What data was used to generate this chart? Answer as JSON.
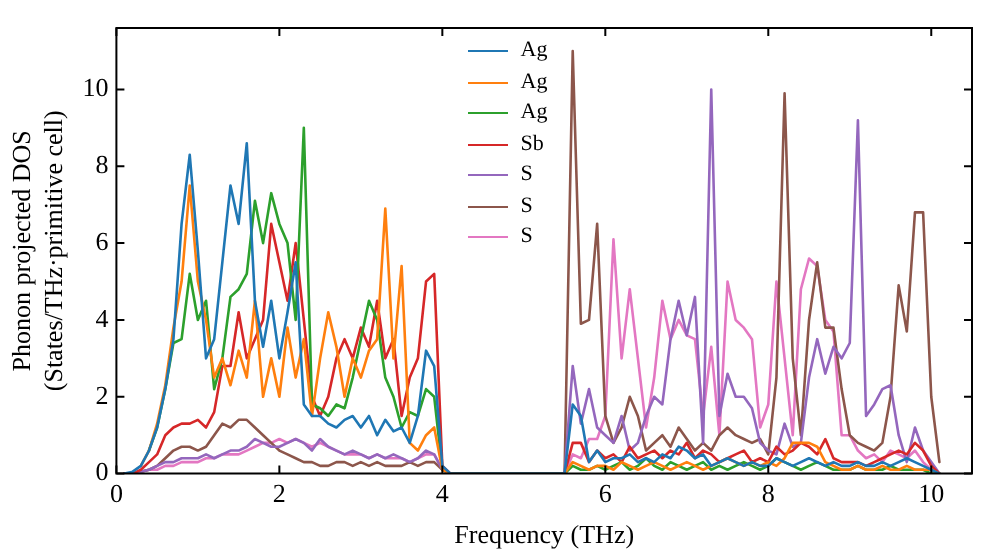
{
  "chart_data": {
    "type": "line",
    "xlabel": "Frequency (THz)",
    "ylabel": "Phonon projected DOS\n(States/THz·primitive cell)",
    "xlim": [
      0,
      10.5
    ],
    "ylim": [
      0,
      11.6
    ],
    "xticks": [
      0,
      2,
      4,
      6,
      8,
      10
    ],
    "yticks": [
      0,
      2,
      4,
      6,
      8,
      10
    ],
    "grid": false,
    "legend": "top center",
    "marker": "none",
    "line_style": "solid",
    "x": [
      0.1,
      0.2,
      0.3,
      0.4,
      0.5,
      0.6,
      0.7,
      0.8,
      0.9,
      1,
      1.1,
      1.2,
      1.3,
      1.4,
      1.5,
      1.6,
      1.7,
      1.8,
      1.9,
      2,
      2.1,
      2.2,
      2.3,
      2.4,
      2.5,
      2.6,
      2.7,
      2.8,
      2.9,
      3,
      3.1,
      3.2,
      3.3,
      3.4,
      3.5,
      3.6,
      3.7,
      3.8,
      3.9,
      4,
      4.1,
      5.5,
      5.6,
      5.7,
      5.8,
      5.9,
      6,
      6.1,
      6.2,
      6.3,
      6.4,
      6.5,
      6.6,
      6.7,
      6.8,
      6.9,
      7,
      7.1,
      7.2,
      7.3,
      7.4,
      7.5,
      7.6,
      7.7,
      7.8,
      7.9,
      8,
      8.1,
      8.2,
      8.3,
      8.4,
      8.5,
      8.6,
      8.7,
      8.8,
      8.9,
      9,
      9.1,
      9.2,
      9.3,
      9.4,
      9.5,
      9.6,
      9.7,
      9.8,
      9.9,
      10,
      10.1
    ],
    "series": [
      {
        "name": "Ag",
        "color": "#1f77b4",
        "values": [
          0,
          0.05,
          0.2,
          0.6,
          1.2,
          2.2,
          3.5,
          6.5,
          8.3,
          5.8,
          3.0,
          3.5,
          5.5,
          7.5,
          6.5,
          8.6,
          4.5,
          3.3,
          4.5,
          3.0,
          4.2,
          5.5,
          1.8,
          1.5,
          1.5,
          1.3,
          1.2,
          1.4,
          1.5,
          1.2,
          1.5,
          1.0,
          1.4,
          1.1,
          1.2,
          0.8,
          1.5,
          3.2,
          2.8,
          0.2,
          0,
          0,
          1.8,
          1.5,
          0.3,
          0.6,
          0.3,
          0.4,
          0.4,
          0.5,
          0.3,
          0.4,
          0.3,
          0.5,
          0.4,
          0.7,
          0.6,
          0.4,
          0.5,
          0.2,
          0.3,
          0.4,
          0.3,
          0.2,
          0.3,
          0.2,
          0.2,
          0.4,
          0.3,
          0.2,
          0.3,
          0.4,
          0.3,
          0.2,
          0.3,
          0.2,
          0.2,
          0.3,
          0.2,
          0.2,
          0.3,
          0.2,
          0.3,
          0.4,
          0.3,
          0.2,
          0.1,
          0
        ]
      },
      {
        "name": "Ag",
        "color": "#ff7f0e",
        "values": [
          null,
          null,
          0.2,
          0.6,
          1.3,
          2.3,
          3.8,
          5.0,
          7.5,
          5.0,
          4.0,
          2.5,
          3.0,
          2.3,
          3.2,
          2.5,
          4.5,
          2.0,
          3.0,
          2.0,
          3.8,
          2.5,
          3.5,
          1.5,
          3.0,
          4.2,
          3.3,
          2.0,
          3.0,
          2.5,
          3.2,
          3.5,
          6.9,
          3.0,
          5.4,
          0.8,
          0.6,
          1.0,
          1.2,
          0.1,
          0,
          0,
          0.3,
          0.2,
          0.1,
          0.2,
          0.2,
          0.1,
          0.3,
          0.2,
          0.1,
          0.2,
          0.3,
          0.2,
          0.1,
          0.2,
          0.3,
          0.2,
          0.1,
          0.2,
          0.3,
          0.4,
          0.3,
          0.2,
          0.3,
          0.2,
          0.3,
          0.2,
          0.4,
          0.8,
          0.8,
          0.8,
          0.7,
          0.3,
          0.2,
          0.1,
          0.1,
          0.2,
          0.1,
          0.1,
          0.2,
          0.1,
          0.1,
          0.2,
          0.1,
          0.1,
          0.1,
          0
        ]
      },
      {
        "name": "Ag",
        "color": "#2ca02c",
        "values": [
          null,
          null,
          null,
          0.6,
          1.2,
          2.2,
          3.4,
          3.5,
          5.2,
          4.0,
          4.5,
          2.2,
          3.0,
          4.6,
          4.8,
          5.2,
          7.1,
          6.0,
          7.3,
          6.5,
          6.0,
          4.0,
          9.0,
          1.8,
          1.7,
          1.5,
          1.8,
          1.7,
          2.5,
          3.5,
          4.5,
          4.0,
          2.5,
          2.0,
          1.2,
          1.6,
          1.5,
          2.2,
          2.0,
          0.1,
          0,
          0,
          0.2,
          0.1,
          0.1,
          0.2,
          0.1,
          0.2,
          0.3,
          0.1,
          0.2,
          0.4,
          0.2,
          0.1,
          0.3,
          0.2,
          0.1,
          0.2,
          0.3,
          0.1,
          0.2,
          0.1,
          0.2,
          0.3,
          0.2,
          0.1,
          0.2,
          0.4,
          0.3,
          0.2,
          0.1,
          0.2,
          0.3,
          0.2,
          0.1,
          0.1,
          0.1,
          0.2,
          0.1,
          0.1,
          0.1,
          0.2,
          0.1,
          0.1,
          0.1,
          0.1,
          0,
          0
        ]
      },
      {
        "name": "Sb",
        "color": "#d62728",
        "values": [
          0,
          0,
          0.1,
          0.3,
          0.5,
          1.0,
          1.2,
          1.3,
          1.3,
          1.4,
          1.2,
          1.6,
          2.8,
          2.8,
          4.2,
          3.0,
          3.5,
          4.0,
          6.5,
          5.5,
          4.5,
          6.0,
          4.0,
          2.0,
          1.5,
          2.0,
          3.0,
          3.5,
          3.0,
          3.8,
          3.3,
          4.5,
          3.0,
          3.5,
          1.5,
          2.5,
          3.0,
          5.0,
          5.2,
          0.2,
          0,
          0,
          0.8,
          0.8,
          0.3,
          0.6,
          0.4,
          0.5,
          0.3,
          0.7,
          0.4,
          0.5,
          0.6,
          0.4,
          0.6,
          0.5,
          0.8,
          0.4,
          0.6,
          0.5,
          0.3,
          0.4,
          0.5,
          0.6,
          0.3,
          0.4,
          0.3,
          0.7,
          0.5,
          0.6,
          0.8,
          0.7,
          0.5,
          0.9,
          0.4,
          0.3,
          0.3,
          0.3,
          0.2,
          0.3,
          0.4,
          0.5,
          0.6,
          0.5,
          0.8,
          0.6,
          0.2,
          0
        ]
      },
      {
        "name": "S",
        "color": "#9467bd",
        "values": [
          0,
          0,
          0.05,
          0.1,
          0.2,
          0.3,
          0.3,
          0.4,
          0.4,
          0.4,
          0.5,
          0.4,
          0.5,
          0.6,
          0.6,
          0.7,
          0.9,
          0.8,
          0.7,
          0.7,
          0.8,
          0.9,
          0.8,
          0.6,
          0.9,
          0.7,
          0.6,
          0.5,
          0.6,
          0.5,
          0.4,
          0.5,
          0.4,
          0.5,
          0.4,
          0.3,
          0.4,
          0.6,
          0.5,
          0.1,
          0,
          0,
          2.8,
          1.3,
          2.2,
          1.2,
          1.0,
          0.8,
          1.5,
          0.6,
          0.8,
          1.5,
          2.0,
          1.8,
          3.5,
          4.5,
          3.6,
          4.6,
          0.8,
          10.0,
          1.5,
          2.6,
          2.0,
          2.0,
          1.7,
          0.8,
          0.6,
          0.5,
          1.3,
          0.7,
          0.8,
          2.5,
          3.5,
          2.6,
          3.3,
          3.0,
          3.4,
          9.2,
          1.5,
          1.8,
          2.2,
          2.3,
          1.0,
          0.3,
          1.2,
          0.6,
          0.3,
          0
        ]
      },
      {
        "name": "S",
        "color": "#8c564b",
        "values": [
          0,
          0,
          0.05,
          0.1,
          0.2,
          0.4,
          0.6,
          0.7,
          0.7,
          0.6,
          0.7,
          1.0,
          1.3,
          1.2,
          1.4,
          1.4,
          1.2,
          1.0,
          0.8,
          0.6,
          0.5,
          0.4,
          0.3,
          0.3,
          0.2,
          0.2,
          0.3,
          0.3,
          0.2,
          0.3,
          0.2,
          0.3,
          0.2,
          0.2,
          0.2,
          0.3,
          0.2,
          0.3,
          0.3,
          0.1,
          0,
          0,
          11.0,
          3.9,
          4.0,
          6.5,
          1.5,
          0.8,
          1.2,
          2.0,
          1.5,
          0.6,
          0.8,
          1.0,
          0.7,
          1.2,
          0.9,
          0.6,
          0.8,
          0.6,
          1.0,
          1.2,
          1.0,
          0.9,
          0.8,
          0.9,
          0.5,
          2.5,
          9.9,
          3.0,
          1.0,
          4.0,
          5.5,
          3.8,
          3.8,
          2.2,
          1.0,
          0.8,
          0.7,
          0.6,
          0.8,
          2.0,
          4.9,
          3.7,
          6.8,
          6.8,
          2.0,
          0.3
        ]
      },
      {
        "name": "S",
        "color": "#e377c2",
        "values": [
          null,
          0,
          0.05,
          0.1,
          0.1,
          0.2,
          0.2,
          0.3,
          0.3,
          0.3,
          0.4,
          0.4,
          0.5,
          0.5,
          0.5,
          0.6,
          0.7,
          0.8,
          0.8,
          0.9,
          0.8,
          0.9,
          0.8,
          0.7,
          0.8,
          0.7,
          0.6,
          0.5,
          0.5,
          0.5,
          0.4,
          0.5,
          0.4,
          0.4,
          0.4,
          0.3,
          0.4,
          0.5,
          0.5,
          0.1,
          0,
          0,
          0.5,
          0.4,
          0.9,
          0.9,
          1.5,
          6.1,
          3.0,
          4.8,
          3.0,
          1.2,
          2.5,
          4.5,
          3.5,
          4.0,
          3.6,
          3.5,
          1.5,
          3.3,
          1.0,
          5.0,
          4.0,
          3.8,
          3.5,
          1.2,
          1.8,
          5.0,
          3.0,
          1.0,
          4.8,
          5.6,
          5.4,
          4.0,
          3.7,
          1.0,
          1.0,
          0.6,
          0.4,
          0.5,
          0.3,
          0.6,
          0.5,
          0.4,
          0.6,
          0.3,
          0.1,
          0
        ]
      }
    ]
  }
}
